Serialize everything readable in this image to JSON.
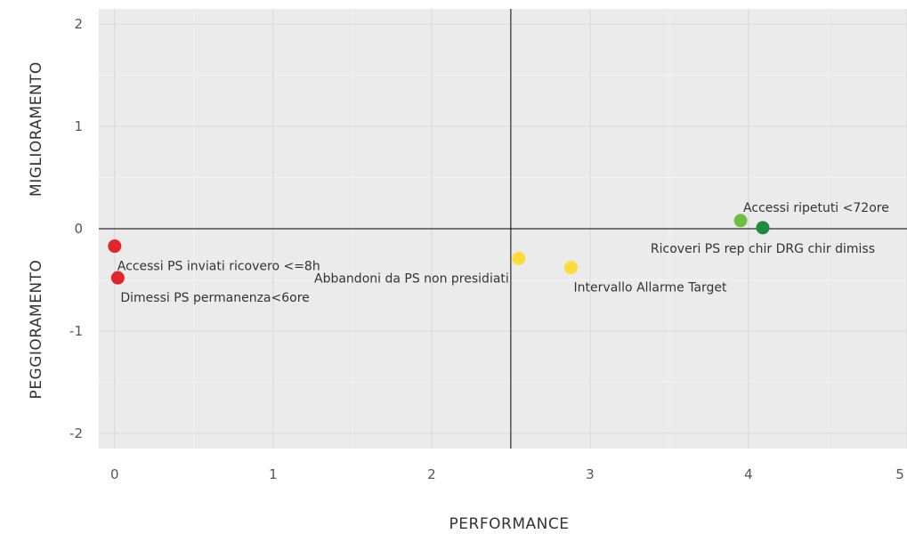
{
  "chart_data": {
    "type": "scatter",
    "xlabel": "PERFORMANCE",
    "ylabel_top": "MIGLIORAMENTO",
    "ylabel_bottom": "PEGGIORAMENTO",
    "xlim": [
      -0.1,
      5.0
    ],
    "ylim": [
      -2.15,
      2.15
    ],
    "x_ticks": [
      0,
      1,
      2,
      3,
      4,
      5
    ],
    "y_ticks": [
      2,
      1,
      0,
      -1,
      -2
    ],
    "grid": true,
    "reference_lines": {
      "x": 2.5,
      "y": 0
    },
    "points": [
      {
        "label": "Accessi PS inviati ricovero <=8h",
        "x": 0.0,
        "y": -0.17,
        "color": "#e3242b",
        "label_pos": "below-right"
      },
      {
        "label": "Dimessi PS permanenza<6ore",
        "x": 0.02,
        "y": -0.48,
        "color": "#e3242b",
        "label_pos": "below-right"
      },
      {
        "label": "Abbandoni  da PS non presidiati",
        "x": 2.55,
        "y": -0.29,
        "color": "#fddc3a",
        "label_pos": "below-left"
      },
      {
        "label": "Intervallo Allarme Target",
        "x": 2.88,
        "y": -0.38,
        "color": "#fddc3a",
        "label_pos": "below-right"
      },
      {
        "label": "Accessi ripetuti <72ore",
        "x": 3.95,
        "y": 0.08,
        "color": "#6cbf43",
        "label_pos": "above-right"
      },
      {
        "label": "Ricoveri PS rep chir DRG chir dimiss",
        "x": 4.09,
        "y": 0.01,
        "color": "#1e8a3c",
        "label_pos": "below"
      }
    ]
  }
}
